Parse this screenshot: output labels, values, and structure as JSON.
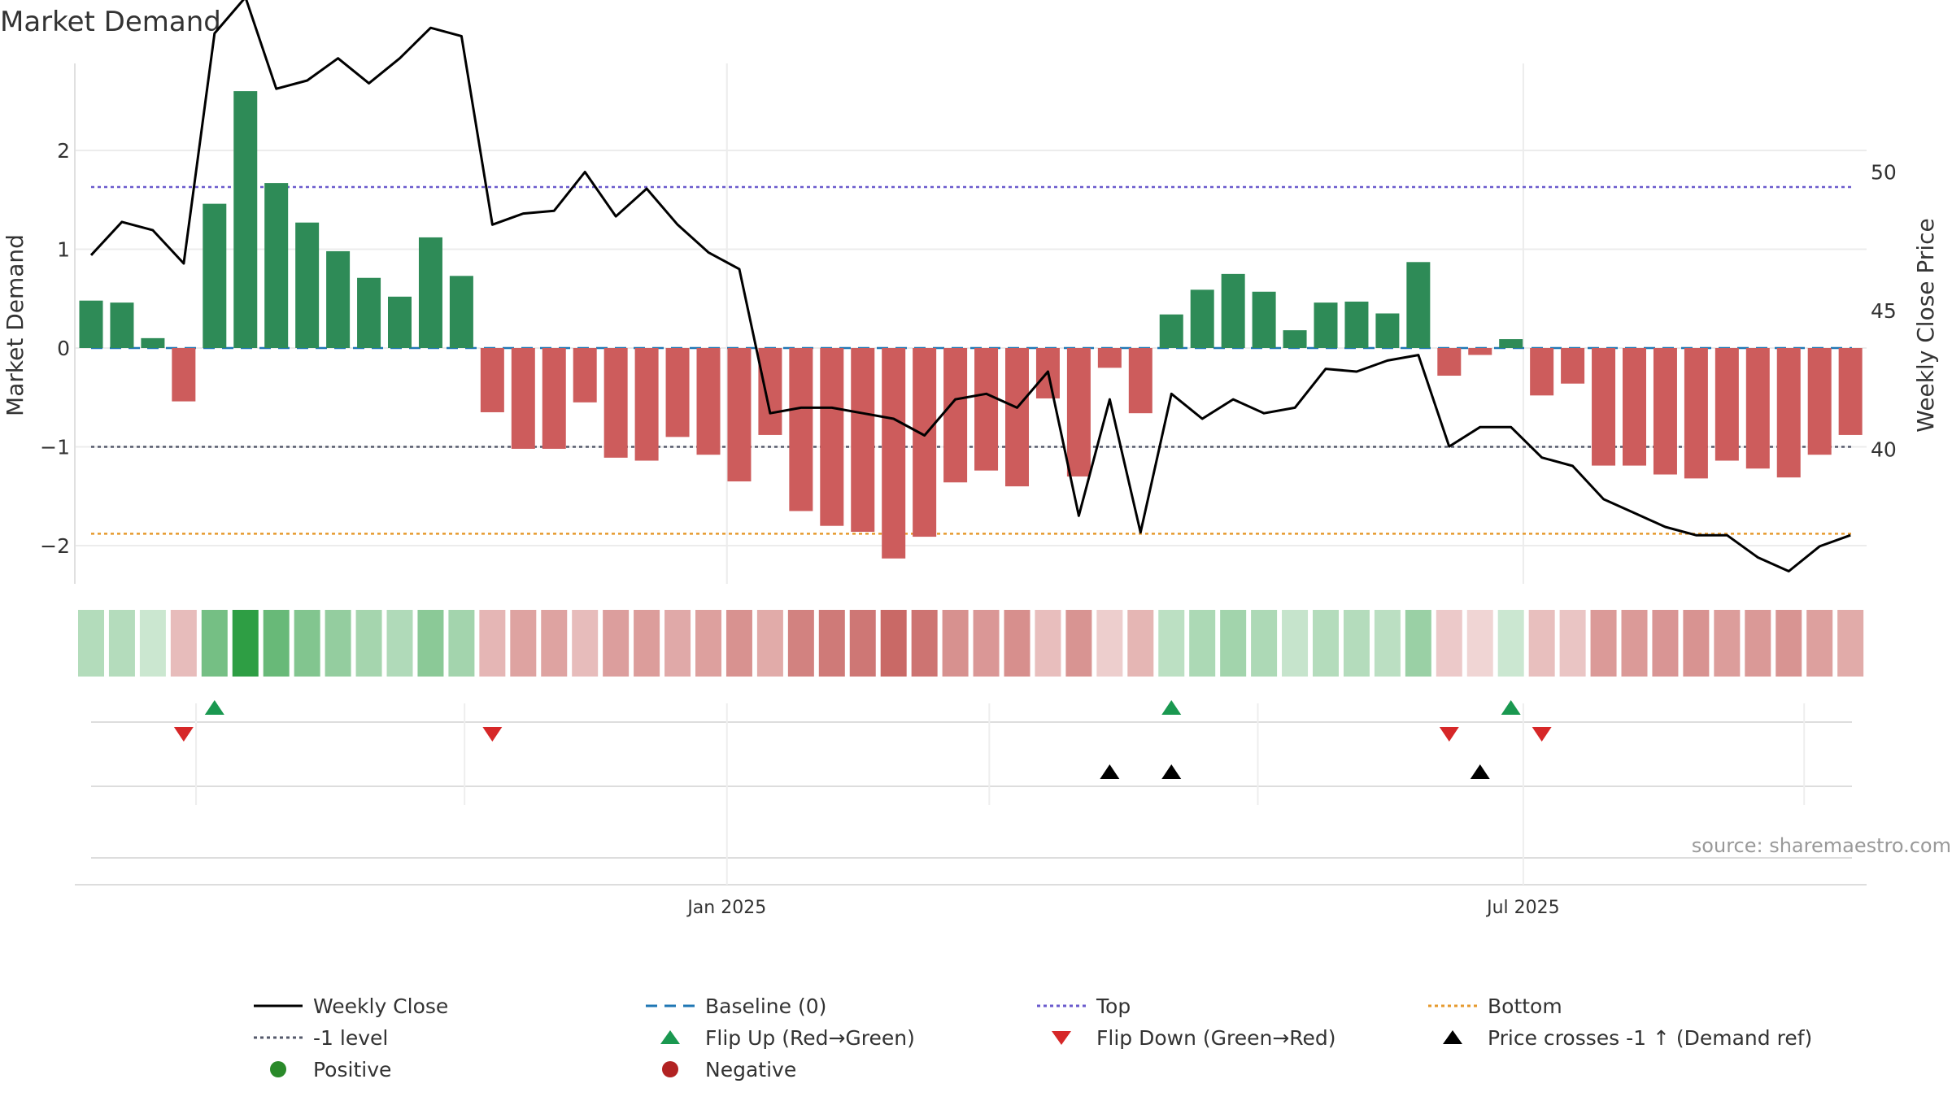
{
  "chart_data": {
    "type": "bar",
    "title": "Market Demand",
    "ylabel": "Market Demand",
    "y2label": "Weekly Close Price",
    "ylim": [
      -2.4,
      2.85
    ],
    "y2lim": [
      34.5,
      58.5
    ],
    "y_ticks": [
      {
        "v": 2,
        "label": "2"
      },
      {
        "v": 1,
        "label": "1"
      },
      {
        "v": 0,
        "label": "0"
      },
      {
        "v": -1,
        "label": "−1"
      },
      {
        "v": -2,
        "label": "−2"
      }
    ],
    "y2_ticks": [
      {
        "v": 50,
        "label": "50"
      },
      {
        "v": 45,
        "label": "45"
      },
      {
        "v": 40,
        "label": "40"
      }
    ],
    "x_ticks": [
      {
        "week": 20.6,
        "label": "Jan 2025"
      },
      {
        "week": 46.4,
        "label": "Jul 2025"
      }
    ],
    "x_minor_weeks": [
      3.4,
      12.1,
      29.1,
      37.8,
      55.5
    ],
    "source_text": "source: sharemaestro.com",
    "colors": {
      "positive": "#2e8b57",
      "negative": "#cd5c5c",
      "price": "#000000",
      "baseline": "#1f77b4",
      "top": "#6a5acd",
      "bottom": "#e69a2e",
      "minus_one": "#555a6b",
      "flip_up": "#1a9850",
      "flip_down": "#d62728",
      "price_cross": "#000000",
      "pos_dot": "#2a8a2a",
      "neg_dot": "#b22222",
      "heat_pos": "#2e9e44",
      "heat_neg": "#c0504d"
    },
    "reference_lines": {
      "baseline": 0,
      "top": 1.63,
      "bottom": -1.88,
      "minus_one": -1.0
    },
    "demand": [
      0.48,
      0.46,
      0.1,
      -0.54,
      1.46,
      2.6,
      1.67,
      1.27,
      0.98,
      0.71,
      0.52,
      1.12,
      0.73,
      -0.65,
      -1.02,
      -1.02,
      -0.55,
      -1.11,
      -1.14,
      -0.9,
      -1.08,
      -1.35,
      -0.88,
      -1.65,
      -1.8,
      -1.86,
      -2.13,
      -1.91,
      -1.36,
      -1.24,
      -1.4,
      -0.51,
      -1.3,
      -0.2,
      -0.66,
      0.34,
      0.59,
      0.75,
      0.57,
      0.18,
      0.46,
      0.47,
      0.35,
      0.87,
      -0.28,
      -0.07,
      0.09,
      -0.48,
      -0.36,
      -1.19,
      -1.19,
      -1.28,
      -1.32,
      -1.14,
      -1.22,
      -1.31,
      -1.08,
      -0.88
    ],
    "price": [
      47.0,
      48.2,
      47.9,
      46.7,
      55.0,
      56.3,
      53.0,
      53.3,
      54.1,
      53.2,
      54.1,
      55.2,
      54.9,
      48.1,
      48.5,
      48.6,
      50.0,
      48.4,
      49.4,
      48.1,
      47.1,
      46.5,
      41.3,
      41.5,
      41.5,
      41.3,
      41.1,
      40.5,
      41.8,
      42.0,
      41.5,
      42.8,
      37.6,
      41.8,
      37.0,
      42.0,
      41.1,
      41.8,
      41.3,
      41.5,
      42.9,
      42.8,
      43.2,
      43.4,
      40.1,
      40.8,
      40.8,
      39.7,
      39.4,
      38.2,
      37.7,
      37.2,
      36.9,
      36.9,
      36.1,
      35.6,
      36.5,
      36.9
    ],
    "flip_up_weeks": [
      4,
      35,
      46
    ],
    "flip_down_weeks": [
      3,
      13,
      44,
      47
    ],
    "price_cross_weeks": [
      33,
      35,
      45
    ],
    "legend": [
      {
        "label": "Weekly Close",
        "type": "line",
        "color": "#000000",
        "dash": ""
      },
      {
        "label": "Baseline (0)",
        "type": "line",
        "color": "#1f77b4",
        "dash": "14 9"
      },
      {
        "label": "Top",
        "type": "line",
        "color": "#6a5acd",
        "dash": "4 4"
      },
      {
        "label": "Bottom",
        "type": "line",
        "color": "#e69a2e",
        "dash": "4 4"
      },
      {
        "label": "-1 level",
        "type": "line",
        "color": "#555a6b",
        "dash": "4 4"
      },
      {
        "label": "Flip Up (Red→Green)",
        "type": "tri-up",
        "color": "#1a9850"
      },
      {
        "label": "Flip Down (Green→Red)",
        "type": "tri-down",
        "color": "#d62728"
      },
      {
        "label": "Price crosses -1 ↑ (Demand ref)",
        "type": "tri-up",
        "color": "#000000"
      },
      {
        "label": "Positive",
        "type": "dot",
        "color": "#2a8a2a"
      },
      {
        "label": "Negative",
        "type": "dot",
        "color": "#b22222"
      }
    ]
  }
}
